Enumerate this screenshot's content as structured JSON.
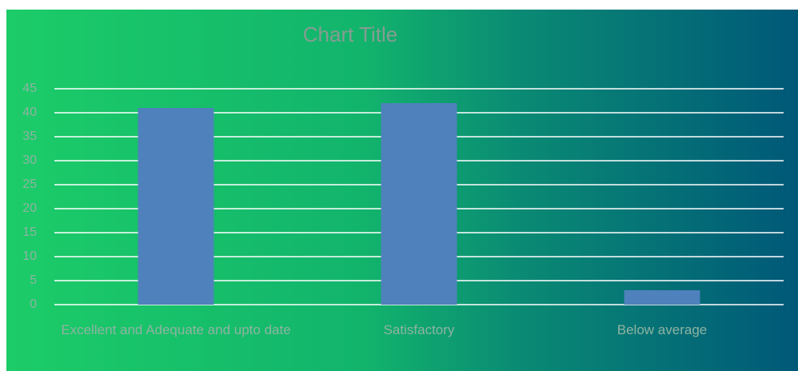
{
  "chart_data": {
    "type": "bar",
    "title": "Chart Title",
    "categories": [
      "Excellent and Adequate and upto date",
      "Satisfactory",
      "Below average"
    ],
    "values": [
      41,
      42,
      3
    ],
    "color": "#4f81bd",
    "ylim": [
      0,
      45
    ],
    "yticks": [
      0,
      5,
      10,
      15,
      20,
      25,
      30,
      35,
      40,
      45
    ],
    "grid": true
  }
}
